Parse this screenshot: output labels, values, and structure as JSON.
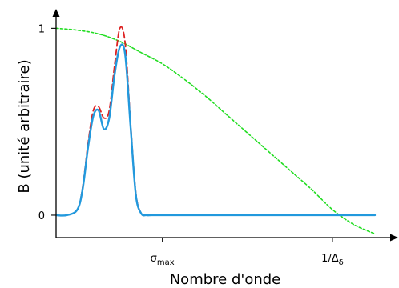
{
  "chart_data": {
    "type": "line",
    "title": "",
    "xlabel": "Nombre d'onde",
    "ylabel": "B (unité arbitraire)",
    "xlim": [
      0,
      3.0
    ],
    "ylim": [
      -0.12,
      1.1
    ],
    "grid": false,
    "legend": "none",
    "x_ticks": [
      {
        "value": 1.0,
        "label": "σ",
        "sub": "max"
      },
      {
        "value": 2.6,
        "label": "1/Δ",
        "sub": "δ"
      }
    ],
    "y_ticks": [
      {
        "value": 0,
        "label": "0"
      },
      {
        "value": 1,
        "label": "1"
      }
    ],
    "series": [
      {
        "color": "#22dd22",
        "dash": "dotted",
        "x": [
          0,
          0.2,
          0.4,
          0.6,
          0.8,
          1.0,
          1.2,
          1.4,
          1.6,
          1.8,
          2.0,
          2.2,
          2.4,
          2.6,
          2.8,
          3.0
        ],
        "y": [
          1.0,
          0.99,
          0.97,
          0.93,
          0.87,
          0.81,
          0.73,
          0.64,
          0.54,
          0.44,
          0.34,
          0.24,
          0.14,
          0.03,
          -0.05,
          -0.1
        ]
      },
      {
        "color": "#dd2222",
        "dash": "dashed",
        "x": [
          0,
          0.1,
          0.2,
          0.25,
          0.3,
          0.35,
          0.4,
          0.45,
          0.5,
          0.55,
          0.6,
          0.65,
          0.7,
          0.75,
          0.8,
          0.85,
          0.9,
          1.0,
          1.2,
          1.5,
          2.0,
          2.5,
          3.0
        ],
        "y": [
          0,
          0,
          0.03,
          0.15,
          0.38,
          0.56,
          0.58,
          0.52,
          0.56,
          0.8,
          1.0,
          0.92,
          0.5,
          0.12,
          0.01,
          0,
          0,
          0,
          0,
          0,
          0,
          0,
          0
        ]
      },
      {
        "color": "#2299dd",
        "dash": "solid",
        "x": [
          0,
          0.1,
          0.2,
          0.25,
          0.3,
          0.35,
          0.4,
          0.45,
          0.5,
          0.55,
          0.6,
          0.65,
          0.7,
          0.75,
          0.8,
          0.85,
          0.9,
          1.0,
          1.2,
          1.5,
          2.0,
          2.5,
          3.0
        ],
        "y": [
          0,
          0,
          0.03,
          0.14,
          0.36,
          0.53,
          0.56,
          0.46,
          0.52,
          0.75,
          0.9,
          0.86,
          0.48,
          0.11,
          0.01,
          0,
          0,
          0,
          0,
          0,
          0,
          0,
          0
        ]
      }
    ]
  }
}
